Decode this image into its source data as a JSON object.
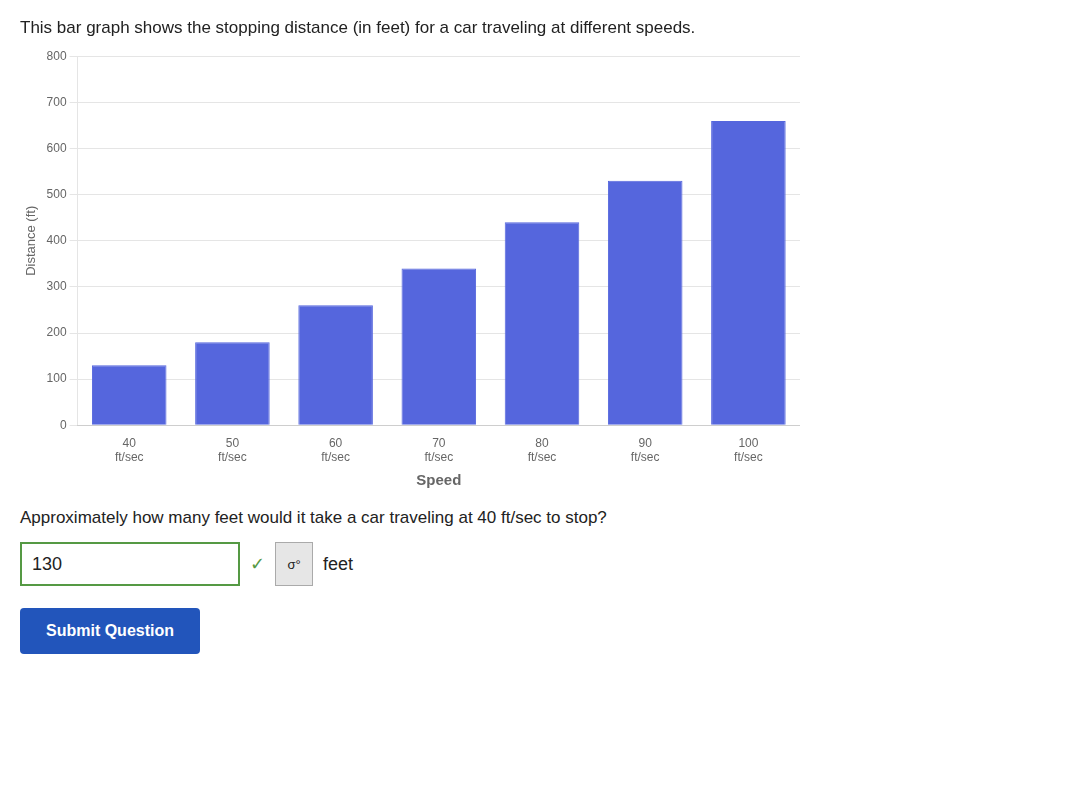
{
  "chart_data": {
    "type": "bar",
    "title": "This bar graph shows the stopping distance (in feet) for a car traveling at different speeds.",
    "categories": [
      "40\nft/sec",
      "50\nft/sec",
      "60\nft/sec",
      "70\nft/sec",
      "80\nft/sec",
      "90\nft/sec",
      "100\nft/sec"
    ],
    "values": [
      130,
      180,
      260,
      340,
      440,
      530,
      660
    ],
    "color": "#5566dd",
    "xlabel": "Speed",
    "ylabel": "Distance (ft)",
    "ylim": [
      0,
      800
    ],
    "yticks": [
      0,
      100,
      200,
      300,
      400,
      500,
      600,
      700,
      800
    ],
    "grid": true,
    "annotations": [
      "Approximately how many feet would it take a car traveling at 40 ft/sec to stop?",
      "130",
      "✓",
      "σ°",
      "feet",
      "Submit Question"
    ]
  }
}
